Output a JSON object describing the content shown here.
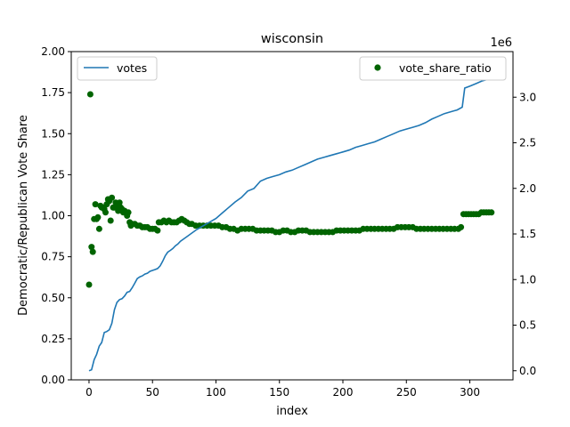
{
  "chart_data": {
    "type": "line",
    "title": "wisconsin",
    "xlabel": "index",
    "ylabel": "Democratic/Republican Vote Share",
    "y2label": "",
    "y2_offset_label": "1e6",
    "xlim": [
      -14,
      334
    ],
    "ylim": [
      0,
      2
    ],
    "y2lim": [
      -100000,
      3500000
    ],
    "x_ticks": [
      0,
      50,
      100,
      150,
      200,
      250,
      300
    ],
    "y_ticks": [
      0.0,
      0.25,
      0.5,
      0.75,
      1.0,
      1.25,
      1.5,
      1.75,
      2.0
    ],
    "y_tick_labels": [
      "0.00",
      "0.25",
      "0.50",
      "0.75",
      "1.00",
      "1.25",
      "1.50",
      "1.75",
      "2.00"
    ],
    "y2_ticks": [
      0,
      500000,
      1000000,
      1500000,
      2000000,
      2500000,
      3000000
    ],
    "y2_tick_labels": [
      "0.0",
      "0.5",
      "1.0",
      "1.5",
      "2.0",
      "2.5",
      "3.0"
    ],
    "legend_left": {
      "position": "top-left",
      "label": "votes",
      "color": "#1f77b4"
    },
    "legend_right": {
      "position": "top-right",
      "label": "vote_share_ratio",
      "color": "#006400"
    },
    "series": [
      {
        "name": "votes",
        "axis": "right",
        "kind": "line",
        "color": "#1f77b4",
        "points": [
          [
            0,
            0
          ],
          [
            2,
            10000
          ],
          [
            4,
            120000
          ],
          [
            6,
            180000
          ],
          [
            8,
            270000
          ],
          [
            10,
            310000
          ],
          [
            12,
            420000
          ],
          [
            14,
            430000
          ],
          [
            16,
            450000
          ],
          [
            18,
            520000
          ],
          [
            20,
            670000
          ],
          [
            22,
            750000
          ],
          [
            24,
            780000
          ],
          [
            26,
            790000
          ],
          [
            28,
            820000
          ],
          [
            30,
            860000
          ],
          [
            32,
            870000
          ],
          [
            34,
            910000
          ],
          [
            36,
            960000
          ],
          [
            38,
            1010000
          ],
          [
            40,
            1030000
          ],
          [
            42,
            1040000
          ],
          [
            44,
            1060000
          ],
          [
            46,
            1070000
          ],
          [
            48,
            1090000
          ],
          [
            50,
            1100000
          ],
          [
            52,
            1110000
          ],
          [
            54,
            1120000
          ],
          [
            56,
            1150000
          ],
          [
            58,
            1200000
          ],
          [
            60,
            1260000
          ],
          [
            62,
            1300000
          ],
          [
            64,
            1320000
          ],
          [
            66,
            1340000
          ],
          [
            68,
            1370000
          ],
          [
            70,
            1390000
          ],
          [
            72,
            1420000
          ],
          [
            75,
            1450000
          ],
          [
            78,
            1480000
          ],
          [
            80,
            1500000
          ],
          [
            85,
            1550000
          ],
          [
            90,
            1590000
          ],
          [
            95,
            1630000
          ],
          [
            100,
            1670000
          ],
          [
            105,
            1730000
          ],
          [
            110,
            1790000
          ],
          [
            115,
            1850000
          ],
          [
            120,
            1900000
          ],
          [
            125,
            1970000
          ],
          [
            130,
            2000000
          ],
          [
            135,
            2080000
          ],
          [
            140,
            2110000
          ],
          [
            145,
            2130000
          ],
          [
            150,
            2150000
          ],
          [
            155,
            2180000
          ],
          [
            160,
            2200000
          ],
          [
            165,
            2230000
          ],
          [
            170,
            2260000
          ],
          [
            175,
            2290000
          ],
          [
            180,
            2320000
          ],
          [
            185,
            2340000
          ],
          [
            190,
            2360000
          ],
          [
            195,
            2380000
          ],
          [
            200,
            2400000
          ],
          [
            205,
            2420000
          ],
          [
            210,
            2450000
          ],
          [
            215,
            2470000
          ],
          [
            220,
            2490000
          ],
          [
            225,
            2510000
          ],
          [
            230,
            2540000
          ],
          [
            235,
            2570000
          ],
          [
            240,
            2600000
          ],
          [
            245,
            2630000
          ],
          [
            250,
            2650000
          ],
          [
            255,
            2670000
          ],
          [
            260,
            2690000
          ],
          [
            265,
            2720000
          ],
          [
            270,
            2760000
          ],
          [
            275,
            2790000
          ],
          [
            280,
            2820000
          ],
          [
            285,
            2840000
          ],
          [
            290,
            2860000
          ],
          [
            294,
            2890000
          ],
          [
            296,
            3100000
          ],
          [
            300,
            3120000
          ],
          [
            305,
            3150000
          ],
          [
            310,
            3180000
          ],
          [
            315,
            3200000
          ],
          [
            320,
            3210000
          ]
        ]
      },
      {
        "name": "vote_share_ratio",
        "axis": "left",
        "kind": "scatter",
        "color": "#006400",
        "points": [
          [
            0,
            0.58
          ],
          [
            1,
            1.74
          ],
          [
            2,
            0.81
          ],
          [
            3,
            0.78
          ],
          [
            4,
            0.98
          ],
          [
            5,
            1.07
          ],
          [
            6,
            0.98
          ],
          [
            7,
            0.99
          ],
          [
            8,
            0.92
          ],
          [
            9,
            1.06
          ],
          [
            10,
            1.05
          ],
          [
            11,
            1.05
          ],
          [
            12,
            1.04
          ],
          [
            13,
            1.02
          ],
          [
            14,
            1.07
          ],
          [
            15,
            1.1
          ],
          [
            16,
            1.09
          ],
          [
            17,
            0.97
          ],
          [
            18,
            1.11
          ],
          [
            19,
            1.05
          ],
          [
            20,
            1.05
          ],
          [
            21,
            1.08
          ],
          [
            22,
            1.05
          ],
          [
            23,
            1.03
          ],
          [
            24,
            1.08
          ],
          [
            25,
            1.05
          ],
          [
            26,
            1.04
          ],
          [
            27,
            1.02
          ],
          [
            28,
            1.03
          ],
          [
            29,
            1.02
          ],
          [
            30,
            1.0
          ],
          [
            31,
            1.02
          ],
          [
            32,
            0.96
          ],
          [
            33,
            0.94
          ],
          [
            34,
            0.95
          ],
          [
            36,
            0.95
          ],
          [
            38,
            0.94
          ],
          [
            40,
            0.94
          ],
          [
            42,
            0.93
          ],
          [
            44,
            0.93
          ],
          [
            46,
            0.93
          ],
          [
            48,
            0.92
          ],
          [
            50,
            0.92
          ],
          [
            52,
            0.92
          ],
          [
            54,
            0.91
          ],
          [
            55,
            0.96
          ],
          [
            57,
            0.96
          ],
          [
            59,
            0.97
          ],
          [
            61,
            0.96
          ],
          [
            63,
            0.97
          ],
          [
            65,
            0.96
          ],
          [
            67,
            0.96
          ],
          [
            69,
            0.96
          ],
          [
            71,
            0.97
          ],
          [
            73,
            0.98
          ],
          [
            75,
            0.97
          ],
          [
            77,
            0.96
          ],
          [
            79,
            0.95
          ],
          [
            81,
            0.95
          ],
          [
            84,
            0.94
          ],
          [
            87,
            0.94
          ],
          [
            90,
            0.94
          ],
          [
            93,
            0.94
          ],
          [
            96,
            0.94
          ],
          [
            99,
            0.94
          ],
          [
            102,
            0.94
          ],
          [
            105,
            0.93
          ],
          [
            108,
            0.93
          ],
          [
            111,
            0.92
          ],
          [
            114,
            0.92
          ],
          [
            117,
            0.91
          ],
          [
            120,
            0.92
          ],
          [
            123,
            0.92
          ],
          [
            126,
            0.92
          ],
          [
            129,
            0.92
          ],
          [
            132,
            0.91
          ],
          [
            135,
            0.91
          ],
          [
            138,
            0.91
          ],
          [
            141,
            0.91
          ],
          [
            144,
            0.91
          ],
          [
            147,
            0.9
          ],
          [
            150,
            0.9
          ],
          [
            153,
            0.91
          ],
          [
            156,
            0.91
          ],
          [
            159,
            0.9
          ],
          [
            162,
            0.9
          ],
          [
            165,
            0.91
          ],
          [
            168,
            0.91
          ],
          [
            171,
            0.91
          ],
          [
            174,
            0.9
          ],
          [
            177,
            0.9
          ],
          [
            180,
            0.9
          ],
          [
            183,
            0.9
          ],
          [
            186,
            0.9
          ],
          [
            189,
            0.9
          ],
          [
            192,
            0.9
          ],
          [
            195,
            0.91
          ],
          [
            198,
            0.91
          ],
          [
            201,
            0.91
          ],
          [
            204,
            0.91
          ],
          [
            207,
            0.91
          ],
          [
            210,
            0.91
          ],
          [
            213,
            0.91
          ],
          [
            216,
            0.92
          ],
          [
            219,
            0.92
          ],
          [
            222,
            0.92
          ],
          [
            225,
            0.92
          ],
          [
            228,
            0.92
          ],
          [
            231,
            0.92
          ],
          [
            234,
            0.92
          ],
          [
            237,
            0.92
          ],
          [
            240,
            0.92
          ],
          [
            243,
            0.93
          ],
          [
            246,
            0.93
          ],
          [
            249,
            0.93
          ],
          [
            252,
            0.93
          ],
          [
            255,
            0.93
          ],
          [
            258,
            0.92
          ],
          [
            261,
            0.92
          ],
          [
            264,
            0.92
          ],
          [
            267,
            0.92
          ],
          [
            270,
            0.92
          ],
          [
            273,
            0.92
          ],
          [
            276,
            0.92
          ],
          [
            279,
            0.92
          ],
          [
            282,
            0.92
          ],
          [
            285,
            0.92
          ],
          [
            288,
            0.92
          ],
          [
            291,
            0.92
          ],
          [
            293,
            0.93
          ],
          [
            295,
            1.01
          ],
          [
            297,
            1.01
          ],
          [
            299,
            1.01
          ],
          [
            301,
            1.01
          ],
          [
            303,
            1.01
          ],
          [
            305,
            1.01
          ],
          [
            307,
            1.01
          ],
          [
            309,
            1.02
          ],
          [
            311,
            1.02
          ],
          [
            313,
            1.02
          ],
          [
            315,
            1.02
          ],
          [
            317,
            1.02
          ]
        ]
      }
    ]
  }
}
